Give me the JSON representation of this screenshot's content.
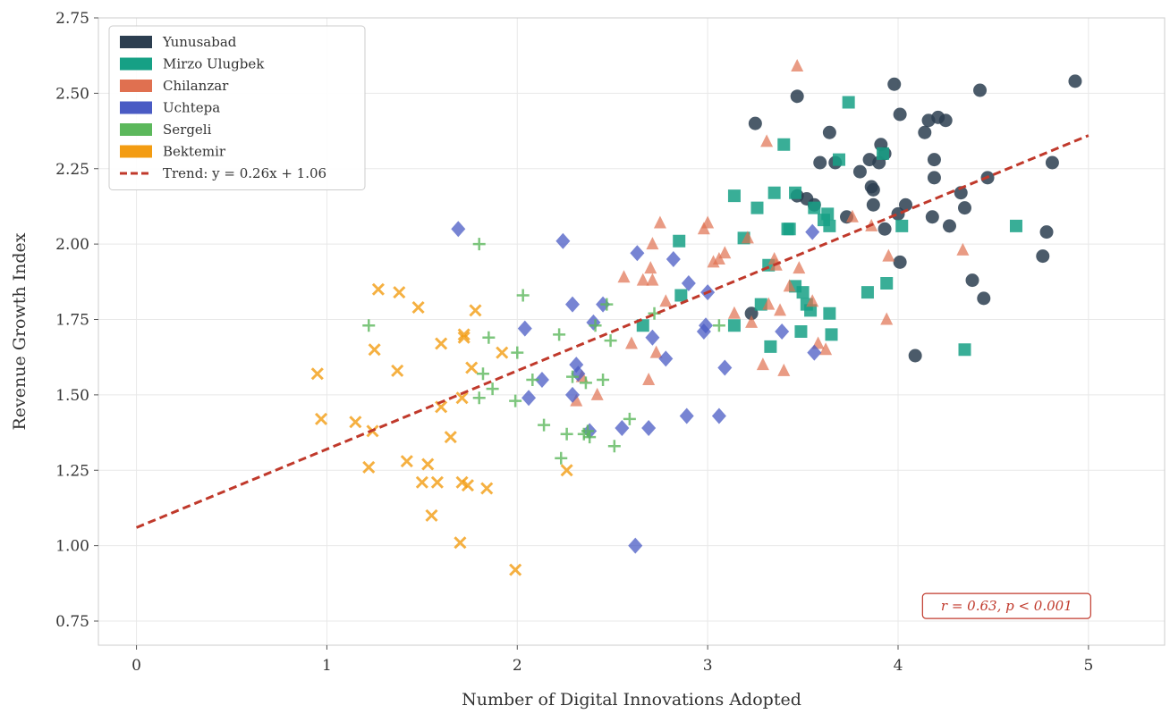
{
  "chart_data": {
    "type": "scatter",
    "title": "",
    "xlabel": "Number of Digital Innovations Adopted",
    "ylabel": "Revenue Growth Index",
    "xlim": [
      -0.2,
      5.4
    ],
    "ylim": [
      0.67,
      2.75
    ],
    "x_ticks": [
      0,
      1,
      2,
      3,
      4,
      5
    ],
    "y_ticks": [
      0.75,
      1.0,
      1.25,
      1.5,
      1.75,
      2.0,
      2.25,
      2.5,
      2.75
    ],
    "x_tick_labels": [
      "0",
      "1",
      "2",
      "3",
      "4",
      "5"
    ],
    "y_tick_labels": [
      "0.75",
      "1.00",
      "1.25",
      "1.50",
      "1.75",
      "2.00",
      "2.25",
      "2.50",
      "2.75"
    ],
    "grid": true,
    "legend_position": "top-left",
    "series": [
      {
        "name": "Yunusabad",
        "color": "#2c3e50",
        "marker": "circle",
        "points": [
          [
            3.25,
            2.4
          ],
          [
            3.47,
            2.49
          ],
          [
            3.64,
            2.37
          ],
          [
            3.67,
            2.27
          ],
          [
            3.73,
            2.09
          ],
          [
            3.8,
            2.24
          ],
          [
            3.85,
            2.28
          ],
          [
            3.86,
            2.19
          ],
          [
            3.87,
            2.13
          ],
          [
            3.87,
            2.18
          ],
          [
            3.9,
            2.27
          ],
          [
            3.91,
            2.33
          ],
          [
            3.93,
            2.3
          ],
          [
            3.93,
            2.05
          ],
          [
            3.98,
            2.53
          ],
          [
            4.0,
            2.1
          ],
          [
            4.01,
            2.43
          ],
          [
            4.01,
            1.94
          ],
          [
            4.04,
            2.13
          ],
          [
            4.09,
            1.63
          ],
          [
            4.14,
            2.37
          ],
          [
            4.16,
            2.41
          ],
          [
            4.18,
            2.09
          ],
          [
            4.19,
            2.22
          ],
          [
            4.19,
            2.28
          ],
          [
            4.21,
            2.42
          ],
          [
            4.25,
            2.41
          ],
          [
            4.27,
            2.06
          ],
          [
            4.33,
            2.17
          ],
          [
            4.35,
            2.12
          ],
          [
            4.39,
            1.88
          ],
          [
            4.43,
            2.51
          ],
          [
            4.45,
            1.82
          ],
          [
            4.47,
            2.22
          ],
          [
            4.76,
            1.96
          ],
          [
            4.78,
            2.04
          ],
          [
            4.81,
            2.27
          ],
          [
            4.93,
            2.54
          ],
          [
            3.47,
            2.16
          ],
          [
            3.52,
            2.15
          ],
          [
            3.56,
            2.13
          ],
          [
            3.59,
            2.27
          ],
          [
            3.23,
            1.77
          ]
        ]
      },
      {
        "name": "Mirzo Ulugbek",
        "color": "#16a085",
        "marker": "square",
        "points": [
          [
            2.66,
            1.73
          ],
          [
            2.85,
            2.01
          ],
          [
            2.86,
            1.83
          ],
          [
            3.14,
            1.73
          ],
          [
            3.14,
            2.16
          ],
          [
            3.19,
            2.02
          ],
          [
            3.26,
            2.12
          ],
          [
            3.28,
            1.8
          ],
          [
            3.32,
            1.93
          ],
          [
            3.33,
            1.66
          ],
          [
            3.35,
            2.17
          ],
          [
            3.4,
            2.33
          ],
          [
            3.42,
            2.05
          ],
          [
            3.46,
            1.86
          ],
          [
            3.46,
            2.17
          ],
          [
            3.49,
            1.71
          ],
          [
            3.5,
            1.84
          ],
          [
            3.52,
            1.8
          ],
          [
            3.54,
            1.78
          ],
          [
            3.56,
            2.12
          ],
          [
            3.63,
            2.1
          ],
          [
            3.64,
            2.06
          ],
          [
            3.64,
            1.77
          ],
          [
            3.65,
            1.7
          ],
          [
            3.69,
            2.28
          ],
          [
            3.74,
            2.47
          ],
          [
            3.84,
            1.84
          ],
          [
            3.92,
            2.3
          ],
          [
            3.94,
            1.87
          ],
          [
            4.02,
            2.06
          ],
          [
            4.35,
            1.65
          ],
          [
            4.62,
            2.06
          ],
          [
            3.61,
            2.08
          ],
          [
            3.43,
            2.05
          ]
        ]
      },
      {
        "name": "Chilanzar",
        "color": "#e07050",
        "marker": "triangle",
        "points": [
          [
            2.31,
            1.48
          ],
          [
            2.34,
            1.56
          ],
          [
            2.42,
            1.5
          ],
          [
            2.56,
            1.89
          ],
          [
            2.6,
            1.67
          ],
          [
            2.66,
            1.88
          ],
          [
            2.69,
            1.55
          ],
          [
            2.71,
            2.0
          ],
          [
            2.71,
            1.88
          ],
          [
            2.73,
            1.64
          ],
          [
            2.75,
            2.07
          ],
          [
            2.78,
            1.81
          ],
          [
            2.98,
            2.05
          ],
          [
            3.0,
            2.07
          ],
          [
            3.06,
            1.95
          ],
          [
            3.09,
            1.97
          ],
          [
            3.14,
            1.77
          ],
          [
            3.21,
            2.02
          ],
          [
            3.23,
            1.74
          ],
          [
            3.29,
            1.6
          ],
          [
            3.31,
            2.34
          ],
          [
            3.32,
            1.8
          ],
          [
            3.35,
            1.95
          ],
          [
            3.36,
            1.93
          ],
          [
            3.38,
            1.78
          ],
          [
            3.4,
            1.58
          ],
          [
            3.43,
            1.86
          ],
          [
            3.47,
            2.59
          ],
          [
            3.48,
            1.92
          ],
          [
            3.55,
            1.81
          ],
          [
            3.58,
            1.67
          ],
          [
            3.62,
            1.65
          ],
          [
            3.76,
            2.09
          ],
          [
            3.86,
            2.06
          ],
          [
            3.94,
            1.75
          ],
          [
            3.95,
            1.96
          ],
          [
            4.34,
            1.98
          ],
          [
            2.7,
            1.92
          ],
          [
            3.03,
            1.94
          ]
        ]
      },
      {
        "name": "Uchtepa",
        "color": "#4a5bc4",
        "marker": "diamond",
        "points": [
          [
            1.69,
            2.05
          ],
          [
            2.04,
            1.72
          ],
          [
            2.06,
            1.49
          ],
          [
            2.13,
            1.55
          ],
          [
            2.24,
            2.01
          ],
          [
            2.29,
            1.5
          ],
          [
            2.29,
            1.8
          ],
          [
            2.31,
            1.6
          ],
          [
            2.32,
            1.57
          ],
          [
            2.38,
            1.38
          ],
          [
            2.4,
            1.74
          ],
          [
            2.45,
            1.8
          ],
          [
            2.55,
            1.39
          ],
          [
            2.62,
            1.0
          ],
          [
            2.63,
            1.97
          ],
          [
            2.69,
            1.39
          ],
          [
            2.71,
            1.69
          ],
          [
            2.78,
            1.62
          ],
          [
            2.82,
            1.95
          ],
          [
            2.89,
            1.43
          ],
          [
            2.9,
            1.87
          ],
          [
            2.98,
            1.71
          ],
          [
            3.0,
            1.84
          ],
          [
            3.06,
            1.43
          ],
          [
            3.09,
            1.59
          ],
          [
            3.39,
            1.71
          ],
          [
            3.55,
            2.04
          ],
          [
            3.56,
            1.64
          ],
          [
            2.99,
            1.73
          ]
        ]
      },
      {
        "name": "Sergeli",
        "color": "#5cb85c",
        "marker": "plus",
        "points": [
          [
            1.22,
            1.73
          ],
          [
            1.8,
            2.0
          ],
          [
            1.8,
            1.49
          ],
          [
            1.82,
            1.57
          ],
          [
            1.85,
            1.69
          ],
          [
            1.87,
            1.52
          ],
          [
            1.99,
            1.48
          ],
          [
            2.0,
            1.64
          ],
          [
            2.03,
            1.83
          ],
          [
            2.14,
            1.4
          ],
          [
            2.22,
            1.7
          ],
          [
            2.23,
            1.29
          ],
          [
            2.26,
            1.37
          ],
          [
            2.29,
            1.56
          ],
          [
            2.35,
            1.37
          ],
          [
            2.36,
            1.54
          ],
          [
            2.38,
            1.36
          ],
          [
            2.41,
            1.73
          ],
          [
            2.45,
            1.55
          ],
          [
            2.47,
            1.8
          ],
          [
            2.49,
            1.68
          ],
          [
            2.51,
            1.33
          ],
          [
            2.59,
            1.42
          ],
          [
            2.72,
            1.77
          ],
          [
            3.06,
            1.73
          ],
          [
            2.08,
            1.55
          ],
          [
            2.37,
            1.38
          ]
        ]
      },
      {
        "name": "Bektemir",
        "color": "#f39c12",
        "marker": "x",
        "points": [
          [
            0.95,
            1.57
          ],
          [
            0.97,
            1.42
          ],
          [
            1.15,
            1.41
          ],
          [
            1.22,
            1.26
          ],
          [
            1.24,
            1.38
          ],
          [
            1.25,
            1.65
          ],
          [
            1.27,
            1.85
          ],
          [
            1.37,
            1.58
          ],
          [
            1.38,
            1.84
          ],
          [
            1.42,
            1.28
          ],
          [
            1.48,
            1.79
          ],
          [
            1.5,
            1.21
          ],
          [
            1.53,
            1.27
          ],
          [
            1.55,
            1.1
          ],
          [
            1.58,
            1.21
          ],
          [
            1.6,
            1.46
          ],
          [
            1.6,
            1.67
          ],
          [
            1.65,
            1.36
          ],
          [
            1.7,
            1.01
          ],
          [
            1.71,
            1.49
          ],
          [
            1.71,
            1.21
          ],
          [
            1.72,
            1.69
          ],
          [
            1.74,
            1.2
          ],
          [
            1.76,
            1.59
          ],
          [
            1.78,
            1.78
          ],
          [
            1.84,
            1.19
          ],
          [
            1.92,
            1.64
          ],
          [
            1.99,
            0.92
          ],
          [
            2.26,
            1.25
          ],
          [
            1.72,
            1.7
          ]
        ]
      }
    ],
    "trend": {
      "label": "Trend: y = 0.26x + 1.06",
      "slope": 0.26,
      "intercept": 1.06,
      "x_range": [
        0,
        5
      ],
      "color": "#c0392b"
    },
    "annotation": {
      "text": "r = 0.63, p < 0.001",
      "x": 4.57,
      "y": 0.8
    }
  }
}
